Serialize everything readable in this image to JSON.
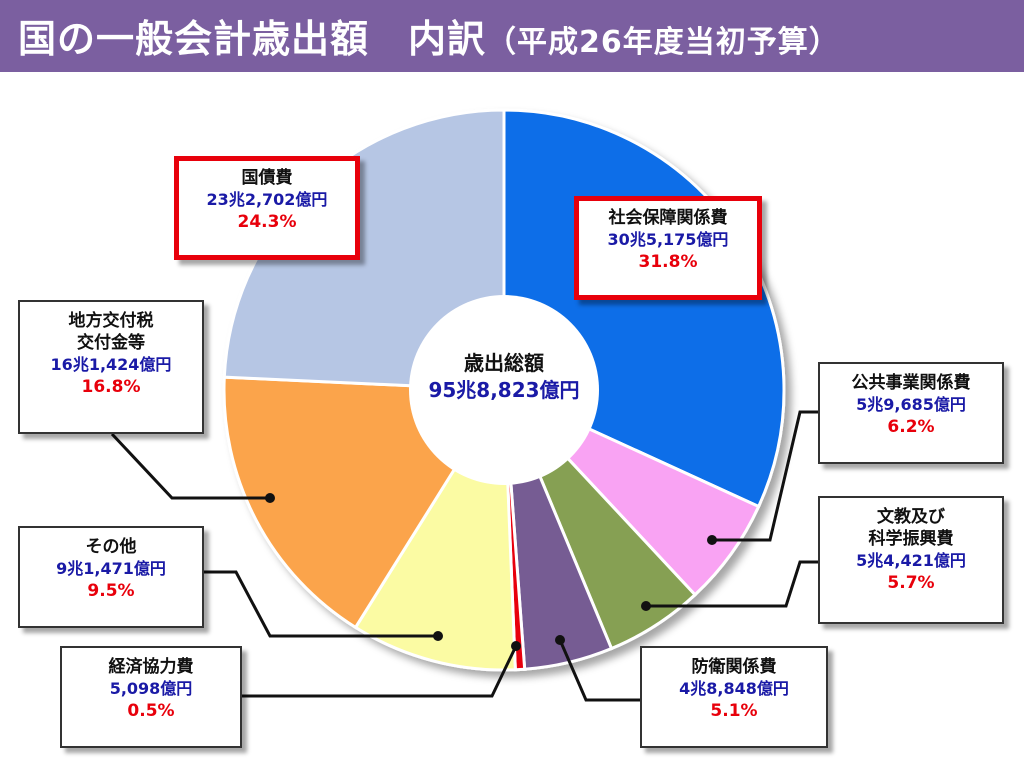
{
  "title": {
    "main": "国の一般会計歳出額　内訳",
    "sub": "（平成26年度当初予算）"
  },
  "center": {
    "label": "歳出総額",
    "amount": "95兆8,823億円"
  },
  "chart_data": {
    "type": "pie",
    "title": "国の一般会計歳出額　内訳（平成26年度当初予算）",
    "total_label": "歳出総額",
    "total_amount": "95兆8,823億円",
    "unit": "億円",
    "slices": [
      {
        "name": "社会保障関係費",
        "name_lines": [
          "社会保障関係費"
        ],
        "amount_text": "30兆5,175億円",
        "value": 305175,
        "percent": 31.8,
        "percent_text": "31.8%",
        "color": "#0a6ee8",
        "highlighted": true
      },
      {
        "name": "公共事業関係費",
        "name_lines": [
          "公共事業関係費"
        ],
        "amount_text": "5兆9,685億円",
        "value": 59685,
        "percent": 6.2,
        "percent_text": "6.2%",
        "color": "#f9a3f3",
        "highlighted": false
      },
      {
        "name": "文教及び科学振興費",
        "name_lines": [
          "文教及び",
          "科学振興費"
        ],
        "amount_text": "5兆4,421億円",
        "value": 54421,
        "percent": 5.7,
        "percent_text": "5.7%",
        "color": "#86a052",
        "highlighted": false
      },
      {
        "name": "防衛関係費",
        "name_lines": [
          "防衛関係費"
        ],
        "amount_text": "4兆8,848億円",
        "value": 48848,
        "percent": 5.1,
        "percent_text": "5.1%",
        "color": "#765b93",
        "highlighted": false
      },
      {
        "name": "経済協力費",
        "name_lines": [
          "経済協力費"
        ],
        "amount_text": "5,098億円",
        "value": 5098,
        "percent": 0.5,
        "percent_text": "0.5%",
        "color": "#e8000b",
        "highlighted": false
      },
      {
        "name": "その他",
        "name_lines": [
          "その他"
        ],
        "amount_text": "9兆1,471億円",
        "value": 91471,
        "percent": 9.5,
        "percent_text": "9.5%",
        "color": "#fbfba3",
        "highlighted": false
      },
      {
        "name": "地方交付税交付金等",
        "name_lines": [
          "地方交付税",
          "交付金等"
        ],
        "amount_text": "16兆1,424億円",
        "value": 161424,
        "percent": 16.8,
        "percent_text": "16.8%",
        "color": "#fba44c",
        "highlighted": false
      },
      {
        "name": "国債費",
        "name_lines": [
          "国債費"
        ],
        "amount_text": "23兆2,702億円",
        "value": 232702,
        "percent": 24.3,
        "percent_text": "24.3%",
        "color": "#b6c6e4",
        "highlighted": true
      }
    ],
    "legend": "none"
  }
}
